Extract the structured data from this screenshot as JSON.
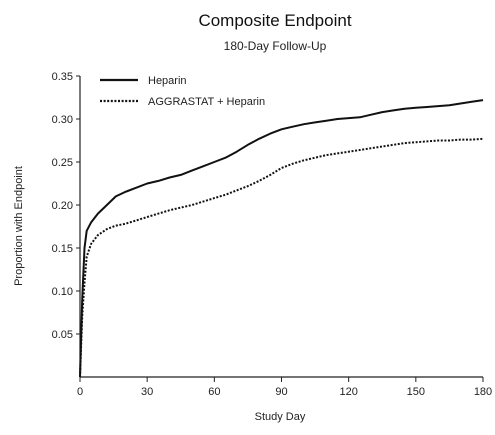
{
  "chart_data": {
    "type": "line",
    "title": "Composite Endpoint",
    "subtitle": "180-Day Follow-Up",
    "xlabel": "Study Day",
    "ylabel": "Proportion with Endpoint",
    "xlim": [
      0,
      180
    ],
    "ylim": [
      0,
      0.35
    ],
    "x_ticks": [
      "0",
      "30",
      "60",
      "90",
      "120",
      "150",
      "180"
    ],
    "y_ticks": [
      "0.05",
      "0.10",
      "0.15",
      "0.20",
      "0.25",
      "0.30",
      "0.35"
    ],
    "grid": false,
    "legend_position": "top-left",
    "series": [
      {
        "name": "Heparin",
        "style": "solid",
        "color": "#111111",
        "x": [
          0,
          1,
          2,
          3,
          5,
          8,
          12,
          16,
          20,
          25,
          30,
          35,
          40,
          45,
          50,
          55,
          60,
          65,
          70,
          75,
          80,
          85,
          90,
          95,
          100,
          105,
          110,
          115,
          120,
          125,
          130,
          135,
          140,
          145,
          150,
          155,
          160,
          165,
          170,
          175,
          180
        ],
        "y": [
          0.0,
          0.09,
          0.15,
          0.17,
          0.18,
          0.19,
          0.2,
          0.21,
          0.215,
          0.22,
          0.225,
          0.228,
          0.232,
          0.235,
          0.24,
          0.245,
          0.25,
          0.255,
          0.262,
          0.27,
          0.277,
          0.283,
          0.288,
          0.291,
          0.294,
          0.296,
          0.298,
          0.3,
          0.301,
          0.302,
          0.305,
          0.308,
          0.31,
          0.312,
          0.313,
          0.314,
          0.315,
          0.316,
          0.318,
          0.32,
          0.322
        ]
      },
      {
        "name": "AGGRASTAT + Heparin",
        "style": "dotted",
        "color": "#111111",
        "x": [
          0,
          1,
          2,
          3,
          5,
          8,
          12,
          16,
          20,
          25,
          30,
          35,
          40,
          45,
          50,
          55,
          60,
          65,
          70,
          75,
          80,
          85,
          90,
          95,
          100,
          105,
          110,
          115,
          120,
          125,
          130,
          135,
          140,
          145,
          150,
          155,
          160,
          165,
          170,
          175,
          180
        ],
        "y": [
          0.0,
          0.07,
          0.11,
          0.14,
          0.155,
          0.165,
          0.172,
          0.176,
          0.178,
          0.182,
          0.186,
          0.19,
          0.194,
          0.197,
          0.2,
          0.204,
          0.208,
          0.212,
          0.217,
          0.222,
          0.228,
          0.235,
          0.243,
          0.248,
          0.252,
          0.255,
          0.258,
          0.26,
          0.262,
          0.264,
          0.266,
          0.268,
          0.27,
          0.272,
          0.273,
          0.274,
          0.275,
          0.275,
          0.276,
          0.276,
          0.277
        ]
      }
    ]
  }
}
